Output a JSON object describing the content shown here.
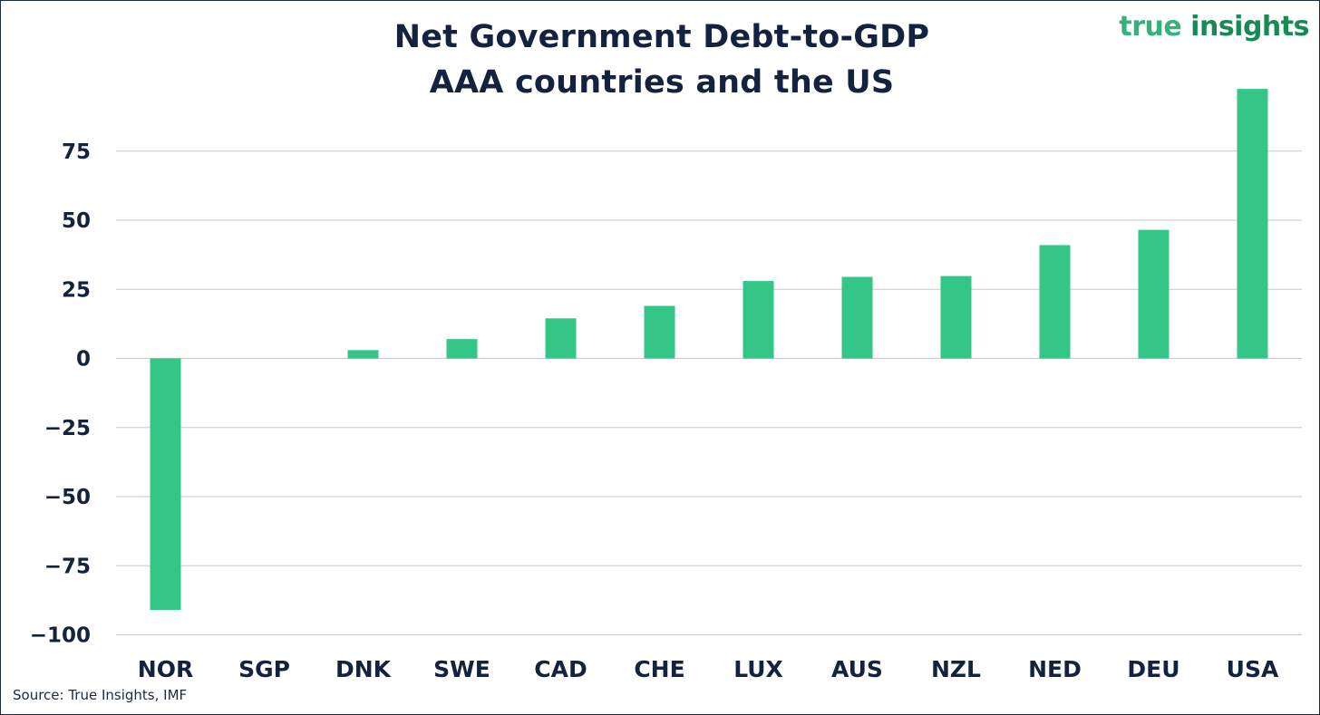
{
  "brand": {
    "part1": "true",
    "part2": " insights",
    "color1": "#33b27a",
    "color2": "#1a8a55"
  },
  "source_note": "Source: True Insights, IMF",
  "colors": {
    "bar": "#34c687",
    "text": "#13233f",
    "grid": "#c8c8c8"
  },
  "chart_data": {
    "type": "bar",
    "title_lines": [
      "Net Government Debt-to-GDP",
      "AAA countries and the US"
    ],
    "categories": [
      "NOR",
      "SGP",
      "DNK",
      "SWE",
      "CAD",
      "CHE",
      "LUX",
      "AUS",
      "NZL",
      "NED",
      "DEU",
      "USA"
    ],
    "values": [
      -91,
      0,
      3,
      7,
      14.5,
      19,
      28,
      29.5,
      29.8,
      41,
      46.5,
      97.5
    ],
    "yticks": [
      "75",
      "50",
      "25",
      "0",
      "-25",
      "-50",
      "-75",
      "-100"
    ],
    "ytick_values": [
      75,
      50,
      25,
      0,
      -25,
      -50,
      -75,
      -100
    ],
    "ylim": [
      -100,
      100
    ],
    "xlabel": "",
    "ylabel": "",
    "grid": true
  }
}
